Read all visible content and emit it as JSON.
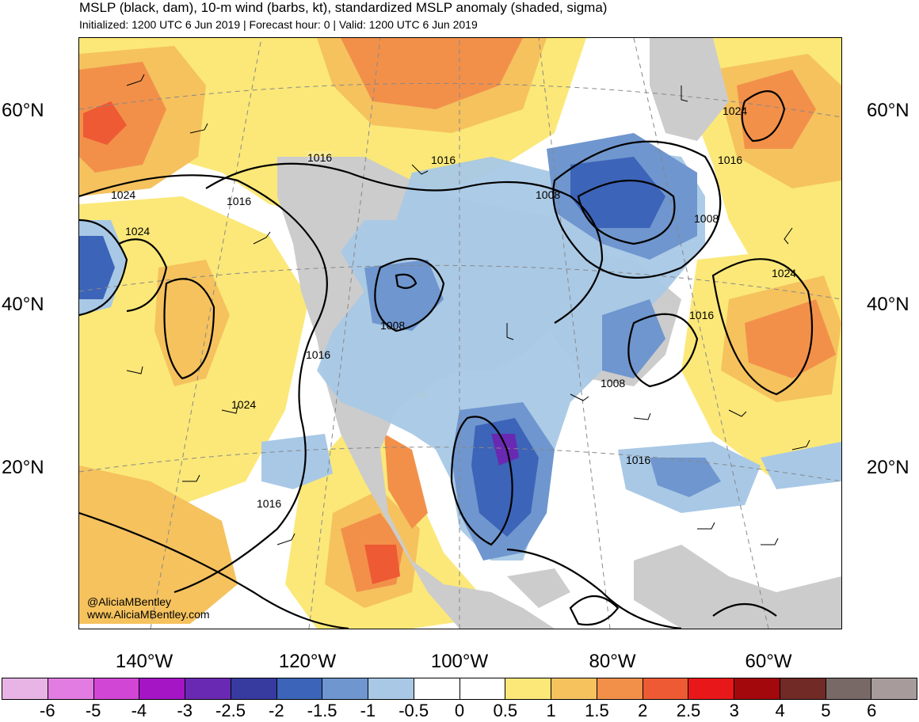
{
  "header": {
    "title": "MSLP (black, dam), 10-m wind (barbs, kt), standardized MSLP anomaly (shaded, sigma)",
    "subtitle": "Initialized: 1200 UTC 6 Jun 2019 | Forecast hour: 0 | Valid: 1200 UTC 6 Jun 2019"
  },
  "map": {
    "lat_labels": [
      "60°N",
      "40°N",
      "20°N"
    ],
    "lon_labels": [
      "140°W",
      "120°W",
      "100°W",
      "80°W",
      "60°W"
    ],
    "isobar_labels": [
      "1016",
      "1016",
      "1024",
      "1016",
      "1024",
      "1008",
      "1024",
      "1008",
      "1016",
      "1024",
      "1016",
      "1008",
      "1016",
      "1008",
      "1016",
      "1016",
      "1024"
    ],
    "credit_handle": "@AliciaMBentley",
    "credit_url": "www.AliciaMBentley.com"
  },
  "colorbar": {
    "labels": [
      "-6",
      "-5",
      "-4",
      "-3",
      "-2.5",
      "-2",
      "-1.5",
      "-1",
      "-0.5",
      "0",
      "0.5",
      "1",
      "1.5",
      "2",
      "2.5",
      "3",
      "4",
      "5",
      "6"
    ],
    "colors": [
      "#e8b4e6",
      "#e27ce2",
      "#d246d6",
      "#a515c6",
      "#6a29b2",
      "#373ba0",
      "#3c64b8",
      "#6f96ce",
      "#a8c8e6",
      "#ffffff",
      "#ffffff",
      "#fbe878",
      "#f5c25e",
      "#f2904a",
      "#ee5a34",
      "#e8171a",
      "#a3080d",
      "#722a27",
      "#786966",
      "#a89b9b"
    ]
  }
}
